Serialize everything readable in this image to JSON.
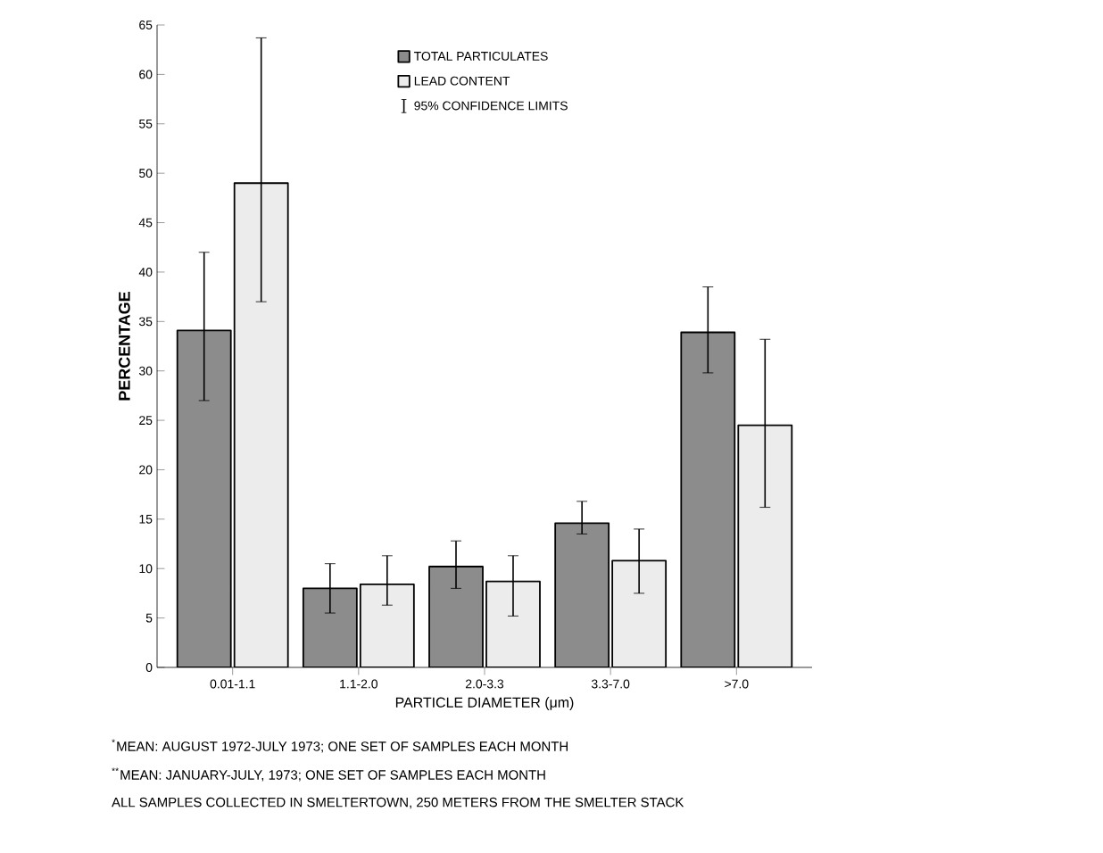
{
  "chart_data": {
    "type": "bar",
    "ylabel": "PERCENTAGE",
    "xlabel": "PARTICLE DIAMETER (μm)",
    "categories": [
      "0.01-1.1",
      "1.1-2.0",
      "2.0-3.3",
      "3.3-7.0",
      ">7.0"
    ],
    "series": [
      {
        "name": "TOTAL PARTICULATES",
        "color": "#8c8c8c",
        "values": [
          34.1,
          8,
          10.2,
          14.6,
          33.9
        ],
        "errors": [
          [
            27,
            42
          ],
          [
            5.5,
            10.5
          ],
          [
            8,
            12.8
          ],
          [
            13.5,
            16.8
          ],
          [
            29.8,
            38.5
          ]
        ]
      },
      {
        "name": "LEAD CONTENT",
        "color": "#ececec",
        "values": [
          49,
          8.4,
          8.7,
          10.8,
          24.5
        ],
        "errors": [
          [
            37,
            63.7
          ],
          [
            6.3,
            11.3
          ],
          [
            5.2,
            11.3
          ],
          [
            7.5,
            14
          ],
          [
            16.2,
            33.2
          ]
        ]
      }
    ],
    "ylim": [
      0,
      65
    ],
    "yticks": [
      0,
      5,
      10,
      15,
      20,
      25,
      30,
      35,
      40,
      45,
      50,
      55,
      60,
      65
    ],
    "legend": "top",
    "grid": false,
    "annotations": [
      "95% CONFIDENCE LIMITS",
      "$^{*}$MEAN: AUGUST 1972-JULY 1973; ONE SET OF SAMPLES EACH MONTH",
      "$^{**}$MEAN: JANUARY-JULY, 1973; ONE SET OF SAMPLES EACH MONTH",
      "ALL SAMPLES COLLECTED IN SMELTERTOWN, 250 METERS FROM THE SMELTER STACK"
    ]
  }
}
